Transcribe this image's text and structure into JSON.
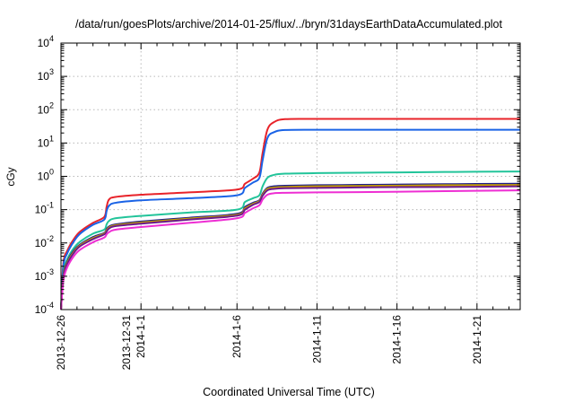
{
  "chart_data": {
    "type": "line",
    "title": "/data/run/goesPlots/archive/2014-01-25/flux/../bryn/31daysEarthDataAccumulated.plot",
    "xlabel": "Coordinated Universal Time (UTC)",
    "ylabel": "cGy",
    "yscale": "log",
    "ylim": [
      0.0001,
      10000
    ],
    "xlim": [
      0,
      28.7
    ],
    "grid": true,
    "y_ticks": [
      {
        "value": 0.0001,
        "base": "10",
        "exp": "-4"
      },
      {
        "value": 0.001,
        "base": "10",
        "exp": "-3"
      },
      {
        "value": 0.01,
        "base": "10",
        "exp": "-2"
      },
      {
        "value": 0.1,
        "base": "10",
        "exp": "-1"
      },
      {
        "value": 1,
        "base": "10",
        "exp": "0"
      },
      {
        "value": 10,
        "base": "10",
        "exp": "1"
      },
      {
        "value": 100,
        "base": "10",
        "exp": "2"
      },
      {
        "value": 1000,
        "base": "10",
        "exp": "3"
      },
      {
        "value": 10000,
        "base": "10",
        "exp": "4"
      }
    ],
    "x_ticks": [
      {
        "value": 0,
        "lines": [
          "2013-12-26"
        ]
      },
      {
        "value": 5,
        "lines": [
          "2013-12-31",
          "2014-1-1"
        ]
      },
      {
        "value": 11,
        "lines": [
          "2014-1-6"
        ]
      },
      {
        "value": 16,
        "lines": [
          "2014-1-11"
        ]
      },
      {
        "value": 21,
        "lines": [
          "2014-1-16"
        ]
      },
      {
        "value": 26,
        "lines": [
          "2014-1-21"
        ]
      }
    ],
    "x_minor_ticks": [
      1,
      2,
      3,
      4,
      6,
      7,
      8,
      9,
      10,
      12,
      13,
      14,
      15,
      17,
      18,
      19,
      20,
      22,
      23,
      24,
      25,
      27,
      28
    ],
    "series": [
      {
        "color": "#e8232a",
        "x": [
          0,
          0.15,
          0.4,
          0.8,
          1.2,
          2.0,
          2.7,
          2.85,
          3.0,
          3.4,
          5,
          8,
          11,
          11.5,
          12.0,
          12.4,
          12.6,
          12.9,
          13.3,
          14,
          16,
          20,
          24,
          28.7
        ],
        "y": [
          0.0001,
          0.0025,
          0.006,
          0.013,
          0.022,
          0.04,
          0.06,
          0.12,
          0.2,
          0.24,
          0.28,
          0.33,
          0.4,
          0.6,
          0.85,
          1.3,
          5,
          25,
          42,
          52,
          53,
          53,
          53,
          53
        ]
      },
      {
        "color": "#1a63e6",
        "x": [
          0,
          0.15,
          0.4,
          0.8,
          1.2,
          2.0,
          2.7,
          2.85,
          3.0,
          3.4,
          5,
          8,
          11,
          11.5,
          12.0,
          12.4,
          12.6,
          12.9,
          13.3,
          14,
          16,
          20,
          24,
          28.7
        ],
        "y": [
          0.0001,
          0.002,
          0.005,
          0.011,
          0.019,
          0.035,
          0.05,
          0.09,
          0.13,
          0.16,
          0.19,
          0.22,
          0.27,
          0.45,
          0.65,
          0.9,
          3,
          14,
          21,
          24.5,
          25,
          25,
          25,
          25
        ]
      },
      {
        "color": "#22c49a",
        "x": [
          0,
          0.15,
          0.4,
          0.8,
          1.2,
          2.0,
          2.7,
          2.85,
          3.0,
          3.4,
          5,
          8,
          11,
          11.5,
          12.0,
          12.4,
          12.6,
          12.9,
          13.3,
          14,
          16,
          20,
          24,
          28.7
        ],
        "y": [
          0.0001,
          0.0013,
          0.0033,
          0.007,
          0.011,
          0.019,
          0.025,
          0.036,
          0.046,
          0.055,
          0.065,
          0.082,
          0.1,
          0.17,
          0.22,
          0.27,
          0.5,
          0.9,
          1.1,
          1.2,
          1.25,
          1.3,
          1.35,
          1.4
        ]
      },
      {
        "color": "#1d1d8a",
        "x": [
          0,
          0.15,
          0.4,
          0.8,
          1.2,
          2.0,
          2.7,
          2.85,
          3.0,
          3.4,
          5,
          8,
          11,
          11.5,
          12.0,
          12.4,
          12.6,
          12.9,
          13.3,
          14,
          16,
          20,
          24,
          28.7
        ],
        "y": [
          0.0001,
          0.0011,
          0.0028,
          0.0058,
          0.009,
          0.015,
          0.02,
          0.026,
          0.031,
          0.036,
          0.044,
          0.057,
          0.075,
          0.12,
          0.16,
          0.19,
          0.3,
          0.45,
          0.5,
          0.52,
          0.54,
          0.56,
          0.58,
          0.6
        ]
      },
      {
        "color": "#c8a000",
        "x": [
          0,
          0.15,
          0.4,
          0.8,
          1.2,
          2.0,
          2.7,
          2.85,
          3.0,
          3.4,
          5,
          8,
          11,
          11.5,
          12.0,
          12.4,
          12.6,
          12.9,
          13.3,
          14,
          16,
          20,
          24,
          28.7
        ],
        "y": [
          0.0001,
          0.001,
          0.0026,
          0.0054,
          0.0085,
          0.014,
          0.019,
          0.024,
          0.029,
          0.034,
          0.041,
          0.054,
          0.07,
          0.11,
          0.15,
          0.18,
          0.28,
          0.42,
          0.46,
          0.48,
          0.5,
          0.52,
          0.54,
          0.55
        ]
      },
      {
        "color": "#6b1a8a",
        "x": [
          0,
          0.15,
          0.4,
          0.8,
          1.2,
          2.0,
          2.7,
          2.85,
          3.0,
          3.4,
          5,
          8,
          11,
          11.5,
          12.0,
          12.4,
          12.6,
          12.9,
          13.3,
          14,
          16,
          20,
          24,
          28.7
        ],
        "y": [
          0.0001,
          0.00095,
          0.0024,
          0.005,
          0.008,
          0.013,
          0.018,
          0.022,
          0.027,
          0.032,
          0.038,
          0.05,
          0.066,
          0.1,
          0.14,
          0.17,
          0.26,
          0.38,
          0.42,
          0.44,
          0.45,
          0.47,
          0.48,
          0.5
        ]
      },
      {
        "color": "#ee2ed3",
        "x": [
          0,
          0.15,
          0.4,
          0.8,
          1.2,
          2.0,
          2.7,
          2.85,
          3.0,
          3.4,
          5,
          8,
          11,
          11.5,
          12.0,
          12.4,
          12.6,
          12.9,
          13.3,
          14,
          16,
          20,
          24,
          28.7
        ],
        "y": [
          0.0001,
          0.00075,
          0.0019,
          0.004,
          0.0063,
          0.0105,
          0.0145,
          0.018,
          0.021,
          0.025,
          0.03,
          0.04,
          0.055,
          0.08,
          0.11,
          0.135,
          0.2,
          0.28,
          0.31,
          0.32,
          0.33,
          0.34,
          0.36,
          0.38
        ]
      }
    ]
  }
}
